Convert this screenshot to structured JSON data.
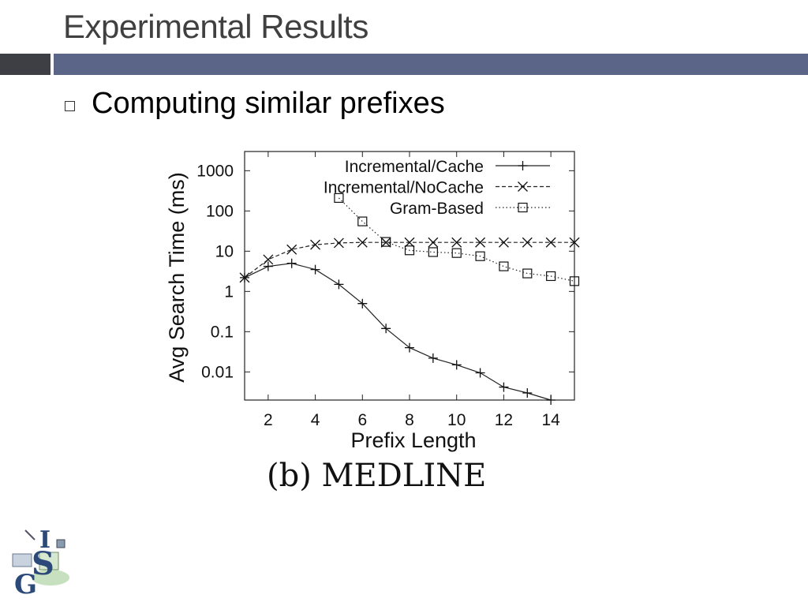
{
  "slide": {
    "title": "Experimental Results",
    "bullet": "Computing similar prefixes",
    "caption": "(b) MEDLINE",
    "logo_text": "ISG"
  },
  "chart_data": {
    "type": "line",
    "xlabel": "Prefix Length",
    "ylabel": "Avg Search Time (ms)",
    "yscale": "log",
    "xlim": [
      1,
      15
    ],
    "ylim": [
      0.002,
      3000
    ],
    "xticks": [
      2,
      4,
      6,
      8,
      10,
      12,
      14
    ],
    "yticks": [
      0.01,
      0.1,
      1,
      10,
      100,
      1000
    ],
    "ytick_labels": [
      "0.01",
      "0.1",
      "1",
      "10",
      "100",
      "1000"
    ],
    "legend_position": "top-right",
    "grid": false,
    "series": [
      {
        "name": "Incremental/Cache",
        "marker": "plus",
        "dash": "solid",
        "x": [
          1,
          2,
          3,
          4,
          5,
          6,
          7,
          8,
          9,
          10,
          11,
          12,
          13,
          14
        ],
        "y": [
          2.2,
          4.2,
          5,
          3.5,
          1.5,
          0.5,
          0.12,
          0.04,
          0.022,
          0.015,
          0.0095,
          0.0042,
          0.003,
          0.002
        ]
      },
      {
        "name": "Incremental/NoCache",
        "marker": "x",
        "dash": "dashed",
        "x": [
          1,
          2,
          3,
          4,
          5,
          6,
          7,
          8,
          9,
          10,
          11,
          12,
          13,
          14,
          15
        ],
        "y": [
          2.2,
          6.2,
          11,
          14.5,
          16,
          16.5,
          16.5,
          16.5,
          16.5,
          16.5,
          16.5,
          16.5,
          16.5,
          16.5,
          16.5
        ]
      },
      {
        "name": "Gram-Based",
        "marker": "square",
        "dash": "dotted",
        "x": [
          5,
          6,
          7,
          8,
          9,
          10,
          11,
          12,
          13,
          14,
          15
        ],
        "y": [
          210,
          55,
          17,
          10.5,
          9.5,
          9,
          7.5,
          4.2,
          2.8,
          2.4,
          1.8
        ]
      }
    ]
  }
}
